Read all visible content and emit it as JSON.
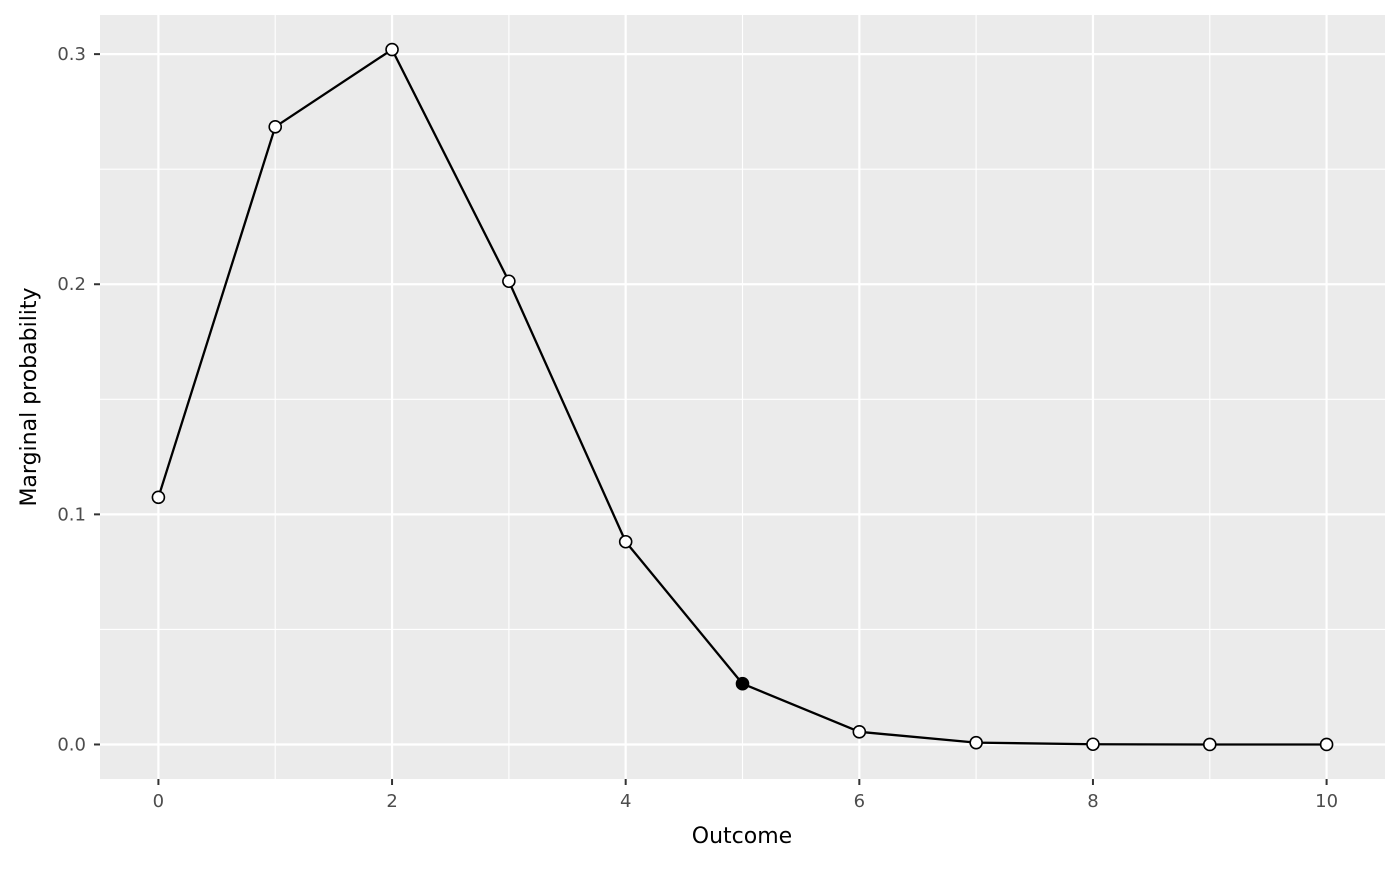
{
  "chart_data": {
    "type": "line",
    "title": "",
    "xlabel": "Outcome",
    "ylabel": "Marginal probability",
    "x": [
      0,
      1,
      2,
      3,
      4,
      5,
      6,
      7,
      8,
      9,
      10
    ],
    "series": [
      {
        "values": [
          0.1074,
          0.2684,
          0.302,
          0.2013,
          0.0881,
          0.0264,
          0.0055,
          0.0008,
          0.0001,
          0.0,
          0.0
        ]
      }
    ],
    "highlighted_point": {
      "x": 5,
      "y": 0.0264
    },
    "xlim": [
      -0.5,
      10.5
    ],
    "ylim": [
      -0.015,
      0.317
    ],
    "x_ticks": [
      0,
      2,
      4,
      6,
      8,
      10
    ],
    "x_tick_labels": [
      "0",
      "2",
      "4",
      "6",
      "8",
      "10"
    ],
    "y_ticks": [
      0.0,
      0.1,
      0.2,
      0.3
    ],
    "y_tick_labels": [
      "0.0",
      "0.1",
      "0.2",
      "0.3"
    ],
    "grid": true,
    "legend": "none",
    "colors": {
      "panel_background": "#EBEBEB",
      "grid": "#FFFFFF",
      "line": "#000000",
      "point_fill": "#FFFFFF",
      "highlight_fill": "#000000",
      "tick_label": "#4D4D4D"
    }
  }
}
